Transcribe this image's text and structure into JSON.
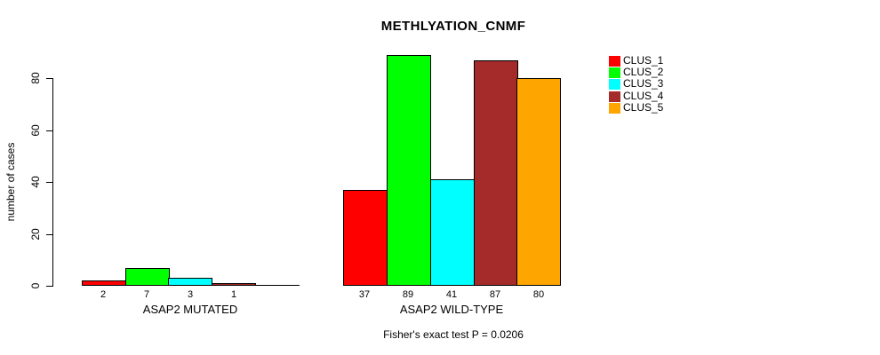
{
  "chart_data": {
    "type": "bar",
    "title": "METHLYATION_CNMF",
    "ylabel": "number of cases",
    "xlabel": "",
    "footnote": "Fisher's exact test P = 0.0206",
    "ylim": [
      0,
      89
    ],
    "yticks": [
      0,
      20,
      40,
      60,
      80
    ],
    "grid": false,
    "legend_position": "right",
    "series": [
      {
        "name": "CLUS_1",
        "color": "#ff0000"
      },
      {
        "name": "CLUS_2",
        "color": "#00ff00"
      },
      {
        "name": "CLUS_3",
        "color": "#00ffff"
      },
      {
        "name": "CLUS_4",
        "color": "#a52a2a"
      },
      {
        "name": "CLUS_5",
        "color": "#ffa500"
      }
    ],
    "groups": [
      {
        "label": "ASAP2 MUTATED",
        "values": [
          2,
          7,
          3,
          1,
          0
        ],
        "bar_labels": [
          "2",
          "7",
          "3",
          "1",
          ""
        ]
      },
      {
        "label": "ASAP2 WILD-TYPE",
        "values": [
          37,
          89,
          41,
          87,
          80
        ],
        "bar_labels": [
          "37",
          "89",
          "41",
          "87",
          "80"
        ]
      }
    ]
  }
}
